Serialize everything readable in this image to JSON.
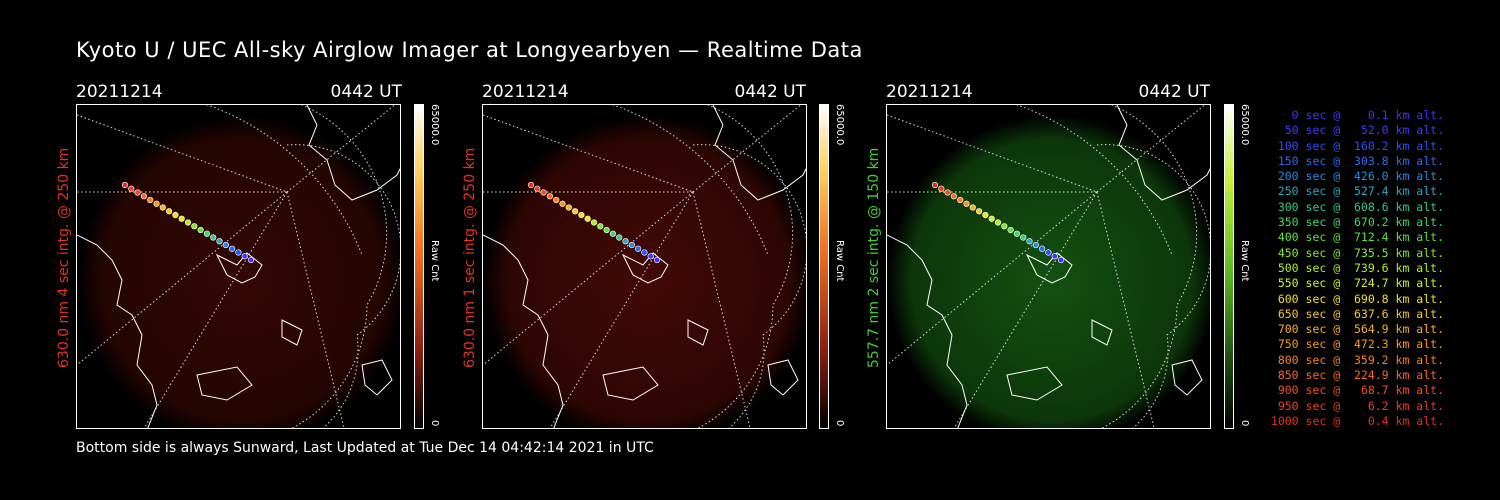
{
  "title": "Kyoto U / UEC All-sky Airglow Imager at Longyearbyen — Realtime Data",
  "footer": "Bottom side is always Sunward, Last Updated at Tue Dec 14 04:42:14 2021 in UTC",
  "panels": [
    {
      "date": "20211214",
      "time": "0442 UT",
      "label": "630.0 nm 4 sec intg. @ 250 km",
      "label_color": "#e83020",
      "cbar_max": "65000.0",
      "cbar_min": "0",
      "cbar_unit": "Raw Cnt",
      "glow": "#3a0804"
    },
    {
      "date": "20211214",
      "time": "0442 UT",
      "label": "630.0 nm 1 sec intg. @ 250 km",
      "label_color": "#e83020",
      "cbar_max": "65000.0",
      "cbar_min": "0",
      "cbar_unit": "Raw Cnt",
      "glow": "#4a0a06"
    },
    {
      "date": "20211214",
      "time": "0442 UT",
      "label": "557.7 nm 2 sec intg. @ 150 km",
      "label_color": "#40d030",
      "cbar_max": "65000.0",
      "cbar_min": "0",
      "cbar_unit": "Raw Cnt",
      "glow": "#155a12"
    }
  ],
  "legend": [
    {
      "text": "   0 sec @    0.1 km alt.",
      "color": "#4a2cff"
    },
    {
      "text": "  50 sec @   52.0 km alt.",
      "color": "#3a3cff"
    },
    {
      "text": " 100 sec @  160.2 km alt.",
      "color": "#2a50ff"
    },
    {
      "text": " 150 sec @  303.8 km alt.",
      "color": "#2a6cf0"
    },
    {
      "text": " 200 sec @  426.0 km alt.",
      "color": "#2a88e0"
    },
    {
      "text": " 250 sec @  527.4 km alt.",
      "color": "#2aa8c0"
    },
    {
      "text": " 300 sec @  608.6 km alt.",
      "color": "#30c890"
    },
    {
      "text": " 350 sec @  670.2 km alt.",
      "color": "#40d860"
    },
    {
      "text": " 400 sec @  712.4 km alt.",
      "color": "#60e040"
    },
    {
      "text": " 450 sec @  735.5 km alt.",
      "color": "#88e830"
    },
    {
      "text": " 500 sec @  739.6 km alt.",
      "color": "#b0f020"
    },
    {
      "text": " 550 sec @  724.7 km alt.",
      "color": "#d8f020"
    },
    {
      "text": " 600 sec @  690.8 km alt.",
      "color": "#f0e020"
    },
    {
      "text": " 650 sec @  637.6 km alt.",
      "color": "#f8c820"
    },
    {
      "text": " 700 sec @  564.9 km alt.",
      "color": "#f8b020"
    },
    {
      "text": " 750 sec @  472.3 km alt.",
      "color": "#f89820"
    },
    {
      "text": " 800 sec @  359.2 km alt.",
      "color": "#f88020"
    },
    {
      "text": " 850 sec @  224.9 km alt.",
      "color": "#f86820"
    },
    {
      "text": " 900 sec @   68.7 km alt.",
      "color": "#f05020"
    },
    {
      "text": " 950 sec @    6.2 km alt.",
      "color": "#e84020"
    },
    {
      "text": "1000 sec @    0.4 km alt.",
      "color": "#e03020"
    }
  ]
}
